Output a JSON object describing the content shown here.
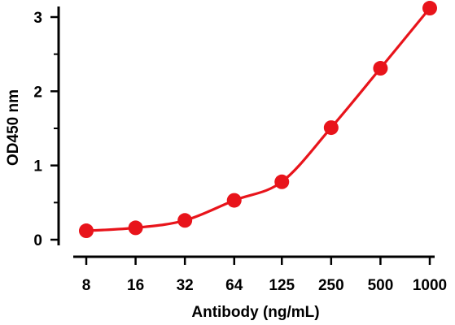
{
  "chart_data": {
    "type": "line",
    "xlabel": "Antibody (ng/mL)",
    "ylabel": "OD450 nm",
    "x_scale": "log2",
    "x_categories": [
      "8",
      "16",
      "32",
      "64",
      "125",
      "250",
      "500",
      "1000"
    ],
    "x": [
      8,
      16,
      32,
      64,
      125,
      250,
      500,
      1000
    ],
    "ylim": [
      0,
      3
    ],
    "y_ticks": [
      "0",
      "1",
      "2",
      "3"
    ],
    "grid": false,
    "series": [
      {
        "values": [
          0.12,
          0.16,
          0.26,
          0.53,
          0.78,
          1.51,
          2.31,
          3.12
        ],
        "color": "#e8141b"
      }
    ]
  }
}
